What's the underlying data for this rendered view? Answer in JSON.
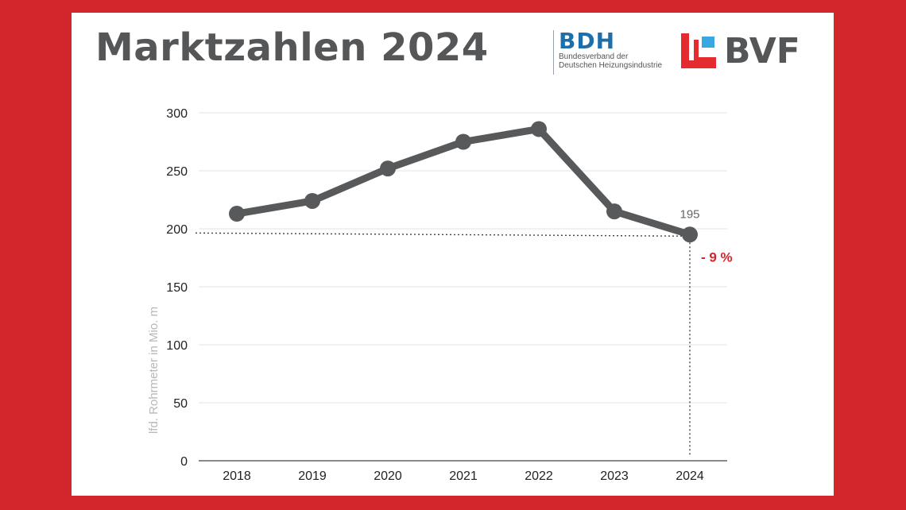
{
  "header": {
    "title": "Marktzahlen 2024",
    "bdh_word": "BDH",
    "bdh_sub_line1": "Bundesverband der",
    "bdh_sub_line2": "Deutschen Heizungsindustrie",
    "bvf_word": "BVF"
  },
  "colors": {
    "background": "#d0262c",
    "line": "#58595b",
    "title": "#555658",
    "bdh_blue": "#1d6ea9",
    "bvf_red": "#e42b2f",
    "bvf_blue": "#3aa7e0",
    "highlight": "#d0262c"
  },
  "chart_data": {
    "type": "line",
    "title": "",
    "xlabel": "",
    "ylabel": "lfd. Rohrmeter in Mio. m",
    "categories": [
      "2018",
      "2019",
      "2020",
      "2021",
      "2022",
      "2023",
      "2024"
    ],
    "series": [
      {
        "values": [
          213,
          224,
          252,
          275,
          286,
          215,
          195
        ]
      }
    ],
    "ylim": [
      0,
      300
    ],
    "yticks": [
      "0",
      "50",
      "100",
      "150",
      "200",
      "250",
      "300"
    ],
    "grid": true,
    "legend": "none",
    "annotations": [
      {
        "category": "2024",
        "text": "195"
      },
      {
        "category": "2024",
        "text": "- 9 %"
      }
    ]
  }
}
